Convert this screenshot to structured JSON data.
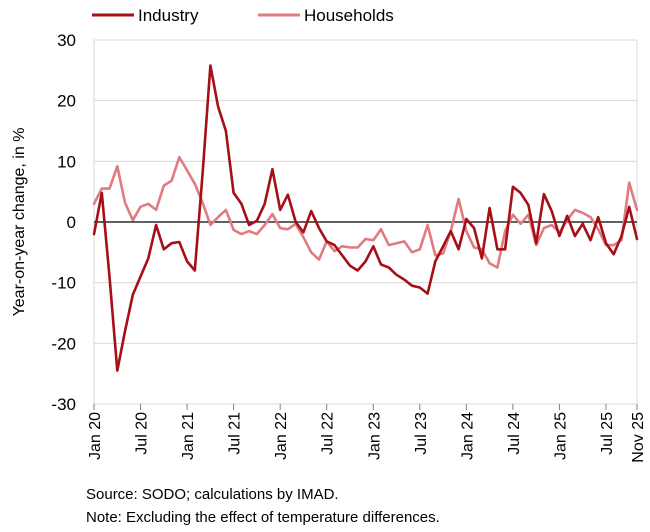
{
  "chart_data": {
    "type": "line",
    "title": "",
    "xlabel": "",
    "ylabel": "Year-on-year change, in %",
    "ylim": [
      -30,
      30
    ],
    "yticks": [
      30,
      20,
      10,
      0,
      -10,
      -20,
      -30
    ],
    "grid": true,
    "legend_position": "top-left",
    "x_start": "Jan 20",
    "x_end": "Nov 25",
    "xtick_labels": [
      "Jan 20",
      "Jul 20",
      "Jan 21",
      "Jul 21",
      "Jan 22",
      "Jul 22",
      "Jan 23",
      "Jul 23",
      "Jan 24",
      "Jul 24",
      "Jan 25",
      "Jul 25",
      "Nov 25"
    ],
    "series": [
      {
        "name": "Industry",
        "color": "#a50f15",
        "values": [
          -2,
          4.8,
          -9,
          -24.5,
          -18,
          -12,
          -9,
          -6,
          -0.5,
          -4.5,
          -3.5,
          -3.3,
          -6.5,
          -8,
          8,
          25.8,
          19,
          15,
          4.8,
          3,
          -0.5,
          0.2,
          3,
          8.7,
          2,
          4.5,
          0,
          -1.7,
          1.8,
          -1,
          -3.2,
          -3.8,
          -5.5,
          -7.2,
          -8,
          -6.5,
          -4,
          -7,
          -7.5,
          -8.7,
          -9.5,
          -10.5,
          -10.8,
          -11.8,
          -6.5,
          -4,
          -1.5,
          -4.5,
          0.5,
          -1,
          -6,
          2.3,
          -4.5,
          -4.5,
          5.8,
          4.8,
          2.8,
          -3.5,
          4.6,
          1.8,
          -2.3,
          1,
          -2.3,
          -0.3,
          -3,
          0.8,
          -3.5,
          -5.3,
          -2.3,
          2.5,
          -2.8
        ]
      },
      {
        "name": "Households",
        "color": "#e07b80",
        "values": [
          3,
          5.5,
          5.5,
          9.2,
          3.2,
          0.3,
          2.5,
          3,
          2,
          6,
          6.8,
          10.7,
          8.5,
          6.3,
          3.2,
          -0.5,
          0.8,
          2,
          -1.3,
          -2,
          -1.5,
          -2,
          -0.5,
          1.3,
          -1,
          -1.2,
          -0.3,
          -2.5,
          -5,
          -6.2,
          -3.2,
          -4.8,
          -4,
          -4.2,
          -4.2,
          -2.8,
          -3,
          -1.2,
          -3.8,
          -3.5,
          -3.2,
          -5,
          -4.5,
          -0.5,
          -5.5,
          -5.2,
          -1.5,
          3.8,
          -1.5,
          -4.2,
          -4.5,
          -6.8,
          -7.5,
          -1.5,
          1.2,
          -0.3,
          1.2,
          -3.8,
          -1,
          -0.5,
          -1.7,
          0.3,
          2,
          1.5,
          0.8,
          -1.2,
          -3.8,
          -3.8,
          -3,
          6.5,
          2
        ]
      }
    ]
  },
  "source": "Source: SODO; calculations by IMAD.",
  "note": "Note:  Excluding the effect of temperature differences."
}
